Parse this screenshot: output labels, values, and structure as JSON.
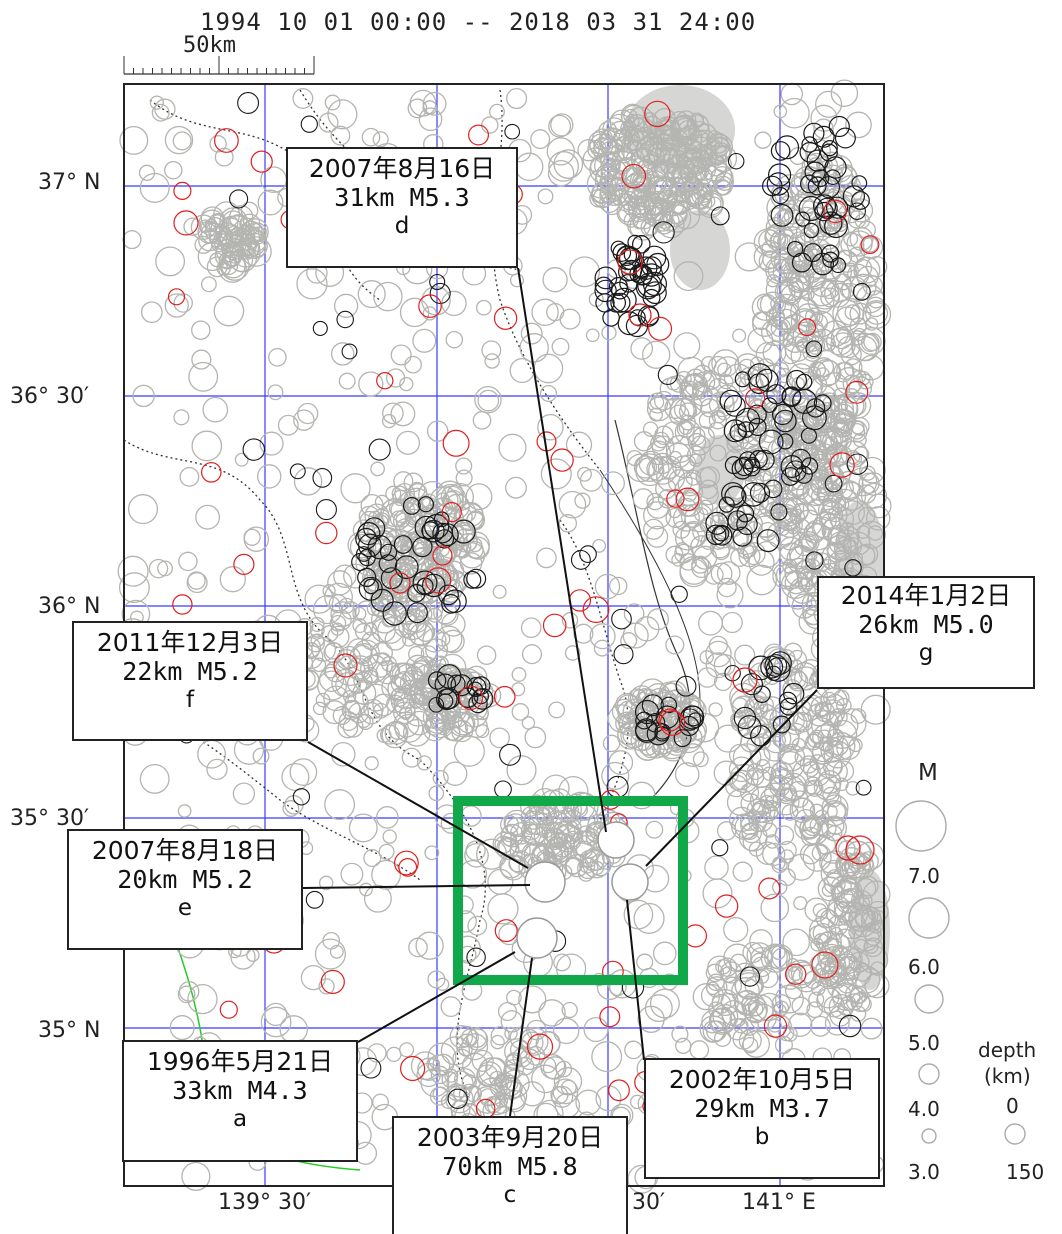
{
  "header": {
    "date_range": "1994 10 01 00:00 -- 2018 03 31 24:00",
    "scale_label": "50km"
  },
  "axes": {
    "lat_labels": [
      "37° N",
      "36° 30′",
      "36° N",
      "35° 30′",
      "35° N"
    ],
    "lon_labels": [
      "139° 30′",
      "30′",
      "141° E"
    ]
  },
  "callouts": [
    {
      "id": "d",
      "date": "2007年8月16日",
      "detail": "31km  M5.3",
      "letter": "d"
    },
    {
      "id": "f",
      "date": "2011年12月3日",
      "detail": "22km  M5.2",
      "letter": "f"
    },
    {
      "id": "g",
      "date": "2014年1月2日",
      "detail": "26km  M5.0",
      "letter": "g"
    },
    {
      "id": "e",
      "date": "2007年8月18日",
      "detail": "20km  M5.2",
      "letter": "e"
    },
    {
      "id": "a",
      "date": "1996年5月21日",
      "detail": "33km  M4.3",
      "letter": "a"
    },
    {
      "id": "b",
      "date": "2002年10月5日",
      "detail": "29km  M3.7",
      "letter": "b"
    },
    {
      "id": "c",
      "date": "2003年9月20日",
      "detail": "70km  M5.8",
      "letter": "c"
    }
  ],
  "legend": {
    "magnitude_title": "M",
    "magnitude_values": [
      "7.0",
      "6.0",
      "5.0",
      "4.0",
      "3.0"
    ],
    "depth_title": "depth",
    "depth_unit": "(km)",
    "depth_values": [
      "0",
      "150"
    ]
  },
  "colors": {
    "gray_events": "#b4b4b0",
    "black_events": "#1a1a1a",
    "red_events": "#e02020",
    "grid": "#3a3aff",
    "highlight_box": "#11a84a",
    "boundaries": "#333333",
    "river": "#22cc22"
  }
}
